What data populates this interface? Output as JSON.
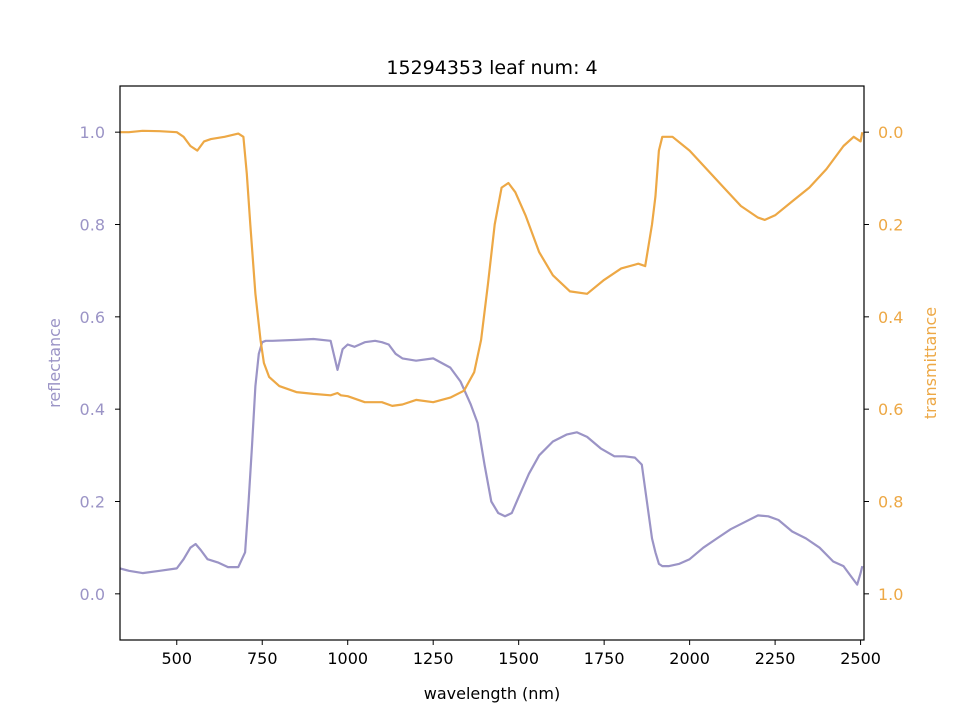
{
  "chart_data": {
    "type": "line",
    "title": "15294353 leaf num: 4",
    "xlabel": "wavelength (nm)",
    "ylabel": "reflectance",
    "y2label": "transmittance",
    "xlim": [
      334,
      2510
    ],
    "ylim": [
      -0.1,
      1.1
    ],
    "y2lim": [
      1.1,
      -0.1
    ],
    "y2_inverted": true,
    "x_ticks": [
      "500",
      "750",
      "1000",
      "1250",
      "1500",
      "1750",
      "2000",
      "2250",
      "2500"
    ],
    "y_ticks": [
      "0.0",
      "0.2",
      "0.4",
      "0.6",
      "0.8",
      "1.0"
    ],
    "y2_ticks": [
      "0.0",
      "0.2",
      "0.4",
      "0.6",
      "0.8",
      "1.0"
    ],
    "grid": false,
    "colors": {
      "reflectance": "#9b94c6",
      "transmittance": "#eda845"
    },
    "series": [
      {
        "axis": "left",
        "x": [
          334,
          360,
          400,
          450,
          500,
          520,
          540,
          555,
          570,
          590,
          620,
          650,
          680,
          700,
          710,
          720,
          730,
          740,
          750,
          760,
          780,
          850,
          900,
          950,
          970,
          975,
          985,
          1000,
          1020,
          1050,
          1080,
          1100,
          1120,
          1140,
          1160,
          1200,
          1250,
          1300,
          1330,
          1360,
          1380,
          1400,
          1420,
          1440,
          1460,
          1480,
          1500,
          1530,
          1560,
          1600,
          1640,
          1670,
          1700,
          1740,
          1780,
          1810,
          1840,
          1860,
          1875,
          1890,
          1900,
          1910,
          1920,
          1940,
          1970,
          2000,
          2040,
          2080,
          2120,
          2160,
          2200,
          2230,
          2260,
          2300,
          2340,
          2380,
          2420,
          2450,
          2470,
          2490,
          2500,
          2505
        ],
        "y": [
          0.055,
          0.05,
          0.045,
          0.05,
          0.055,
          0.075,
          0.1,
          0.108,
          0.095,
          0.075,
          0.068,
          0.058,
          0.058,
          0.09,
          0.2,
          0.32,
          0.45,
          0.52,
          0.545,
          0.548,
          0.548,
          0.55,
          0.552,
          0.548,
          0.485,
          0.5,
          0.53,
          0.54,
          0.535,
          0.545,
          0.548,
          0.545,
          0.54,
          0.52,
          0.51,
          0.505,
          0.51,
          0.49,
          0.46,
          0.41,
          0.37,
          0.28,
          0.2,
          0.175,
          0.168,
          0.175,
          0.21,
          0.26,
          0.3,
          0.33,
          0.345,
          0.35,
          0.34,
          0.315,
          0.298,
          0.298,
          0.295,
          0.28,
          0.2,
          0.12,
          0.09,
          0.065,
          0.06,
          0.06,
          0.065,
          0.075,
          0.1,
          0.12,
          0.14,
          0.155,
          0.17,
          0.168,
          0.16,
          0.135,
          0.12,
          0.1,
          0.07,
          0.06,
          0.04,
          0.02,
          0.045,
          0.06
        ]
      },
      {
        "axis": "right",
        "x": [
          334,
          360,
          400,
          450,
          500,
          520,
          540,
          560,
          580,
          600,
          640,
          680,
          695,
          705,
          715,
          730,
          745,
          755,
          770,
          800,
          850,
          900,
          950,
          970,
          980,
          1000,
          1050,
          1100,
          1130,
          1160,
          1200,
          1250,
          1300,
          1340,
          1370,
          1390,
          1410,
          1430,
          1450,
          1470,
          1490,
          1520,
          1560,
          1600,
          1650,
          1700,
          1750,
          1800,
          1850,
          1870,
          1890,
          1900,
          1910,
          1920,
          1950,
          2000,
          2050,
          2100,
          2150,
          2200,
          2220,
          2250,
          2300,
          2350,
          2400,
          2450,
          2480,
          2500,
          2505
        ],
        "y": [
          0.0,
          0.0,
          -0.003,
          -0.002,
          0.0,
          0.01,
          0.03,
          0.04,
          0.02,
          0.015,
          0.01,
          0.003,
          0.01,
          0.09,
          0.2,
          0.35,
          0.45,
          0.5,
          0.53,
          0.55,
          0.563,
          0.567,
          0.57,
          0.565,
          0.57,
          0.572,
          0.585,
          0.585,
          0.593,
          0.59,
          0.58,
          0.585,
          0.575,
          0.56,
          0.52,
          0.45,
          0.33,
          0.2,
          0.12,
          0.11,
          0.13,
          0.18,
          0.26,
          0.31,
          0.345,
          0.35,
          0.32,
          0.295,
          0.285,
          0.29,
          0.2,
          0.14,
          0.04,
          0.01,
          0.01,
          0.04,
          0.08,
          0.12,
          0.16,
          0.185,
          0.19,
          0.18,
          0.15,
          0.12,
          0.08,
          0.03,
          0.01,
          0.02,
          0.0
        ]
      }
    ]
  }
}
